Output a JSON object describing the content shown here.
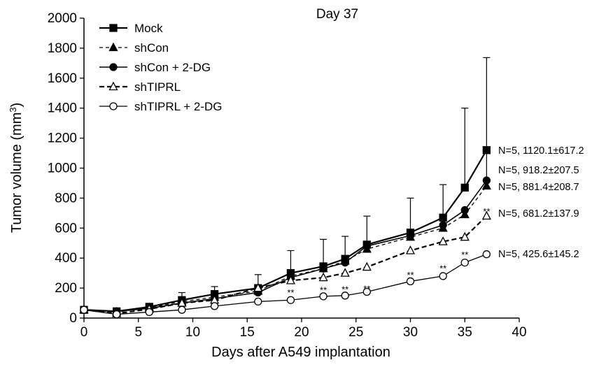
{
  "chart_data": {
    "type": "line",
    "title": "Day 37",
    "xlabel": "Days after A549 implantation",
    "ylabel": "Tumor volume (mm",
    "ylabel_sup": "3",
    "ylabel_end": ")",
    "xlim": [
      0,
      40
    ],
    "ylim": [
      0,
      2000
    ],
    "xticks": [
      0,
      5,
      10,
      15,
      20,
      25,
      30,
      35,
      40
    ],
    "yticks": [
      0,
      200,
      400,
      600,
      800,
      1000,
      1200,
      1400,
      1600,
      1800,
      2000
    ],
    "grid": false,
    "legend_position": "top-left",
    "x": [
      0,
      3,
      6,
      9,
      12,
      16,
      19,
      22,
      24,
      26,
      30,
      33,
      35,
      37
    ],
    "series": [
      {
        "name": "Mock",
        "line": "solid",
        "width": 2.2,
        "marker": "square",
        "fill": "filled",
        "values": [
          55,
          45,
          75,
          120,
          160,
          200,
          300,
          345,
          395,
          490,
          570,
          670,
          870,
          1120
        ],
        "errors": [
          0,
          0,
          20,
          50,
          50,
          90,
          150,
          180,
          150,
          190,
          230,
          220,
          530,
          617
        ]
      },
      {
        "name": "shCon",
        "line": "dashed-thin",
        "width": 1.3,
        "marker": "triangle",
        "fill": "filled",
        "values": [
          55,
          40,
          70,
          110,
          140,
          180,
          280,
          330,
          380,
          460,
          540,
          600,
          690,
          881
        ]
      },
      {
        "name": "shCon + 2-DG",
        "line": "solid",
        "width": 1.6,
        "marker": "circle",
        "fill": "filled",
        "values": [
          55,
          45,
          65,
          100,
          130,
          170,
          270,
          330,
          370,
          480,
          550,
          620,
          720,
          918
        ],
        "errors": [
          0,
          0,
          0,
          0,
          0,
          0,
          0,
          0,
          0,
          0,
          0,
          0,
          0,
          207.5
        ]
      },
      {
        "name": "shTIPRL",
        "line": "dashed",
        "width": 2.2,
        "marker": "triangle",
        "fill": "open",
        "values": [
          55,
          30,
          60,
          100,
          120,
          200,
          250,
          270,
          300,
          340,
          450,
          510,
          540,
          681
        ]
      },
      {
        "name": "shTIPRL + 2-DG",
        "line": "solid",
        "width": 1.3,
        "marker": "circle",
        "fill": "open",
        "values": [
          55,
          25,
          40,
          55,
          80,
          110,
          120,
          145,
          150,
          175,
          245,
          280,
          370,
          425.6
        ]
      }
    ],
    "significance": [
      {
        "x": 19,
        "y": 150,
        "label": "**"
      },
      {
        "x": 22,
        "y": 165,
        "label": "**"
      },
      {
        "x": 24,
        "y": 170,
        "label": "**"
      },
      {
        "x": 26,
        "y": 175,
        "label": "**"
      },
      {
        "x": 30,
        "y": 265,
        "label": "**"
      },
      {
        "x": 33,
        "y": 310,
        "label": "**"
      },
      {
        "x": 35,
        "y": 400,
        "label": "**"
      },
      {
        "x": 37,
        "y": 690,
        "label": "**"
      }
    ],
    "annotations": [
      "N=5, 1120.1±617.2",
      "N=5, 918.2±207.5",
      "N=5, 881.4±208.7",
      "N=5, 681.2±137.9",
      "N=5, 425.6±145.2"
    ]
  }
}
